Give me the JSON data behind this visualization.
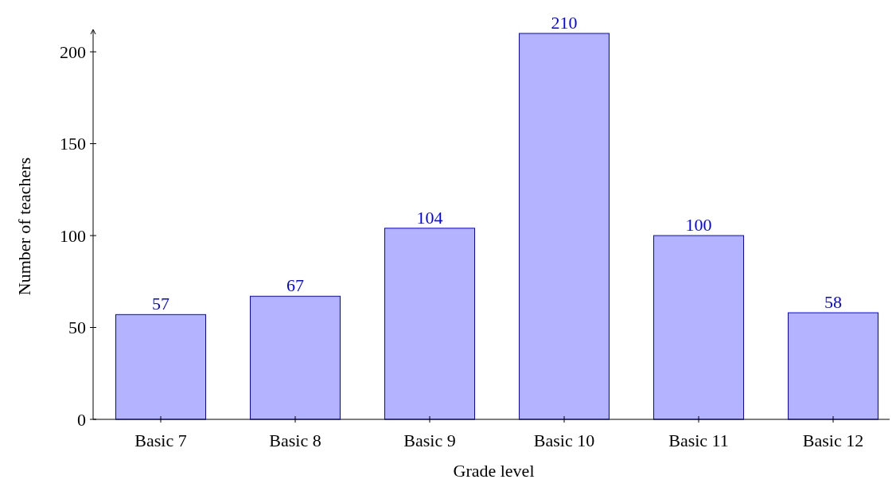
{
  "chart_data": {
    "type": "bar",
    "xlabel": "Grade level",
    "ylabel": "Number of teachers",
    "categories": [
      "Basic 7",
      "Basic 8",
      "Basic 9",
      "Basic 10",
      "Basic 11",
      "Basic 12"
    ],
    "values": [
      57,
      67,
      104,
      210,
      100,
      58
    ],
    "color": "#b3b3ff",
    "ylim": [
      0,
      210
    ],
    "yticks": [
      0,
      50,
      100,
      150,
      200
    ],
    "data_labels": true,
    "grid": false
  }
}
